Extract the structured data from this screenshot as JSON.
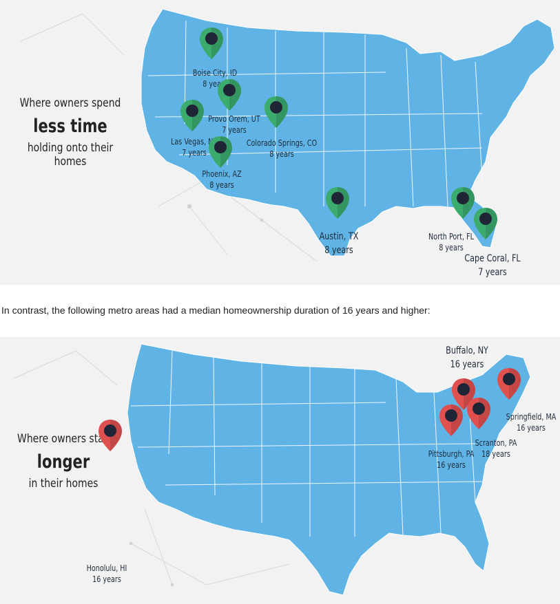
{
  "top_map": {
    "side_line1": "Where owners spend",
    "side_line2": "less time",
    "side_line3": "holding onto their homes",
    "pin_color": "#3bab6e",
    "cities": [
      {
        "name": "Boise City, ID",
        "years": "8 years"
      },
      {
        "name": "Provo Orem, UT",
        "years": "7 years"
      },
      {
        "name": "Las Vegas, NV",
        "years": "7 years"
      },
      {
        "name": "Phoenix, AZ",
        "years": "8 years"
      },
      {
        "name": "Colorado Springs, CO",
        "years": "8 years"
      },
      {
        "name": "Austin, TX",
        "years": "8 years"
      },
      {
        "name": "North Port, FL",
        "years": "8 years"
      },
      {
        "name": "Cape Coral, FL",
        "years": "7 years"
      }
    ]
  },
  "intro_text": "In contrast, the following metro areas had a median homeownership duration of 16 years and higher:",
  "bottom_map": {
    "side_line1": "Where owners stay",
    "side_line2": "longer",
    "side_line3": "in their homes",
    "pin_color": "#e0504f",
    "cities": [
      {
        "name": "Buffalo, NY",
        "years": "16 years"
      },
      {
        "name": "Springfield, MA",
        "years": "16 years"
      },
      {
        "name": "Scranton, PA",
        "years": "18 years"
      },
      {
        "name": "Pittsburgh, PA",
        "years": "16 years"
      },
      {
        "name": "Honolulu, HI",
        "years": "16 years"
      }
    ]
  },
  "map_color": "#5fb4e5",
  "border_color": "#ffffff"
}
